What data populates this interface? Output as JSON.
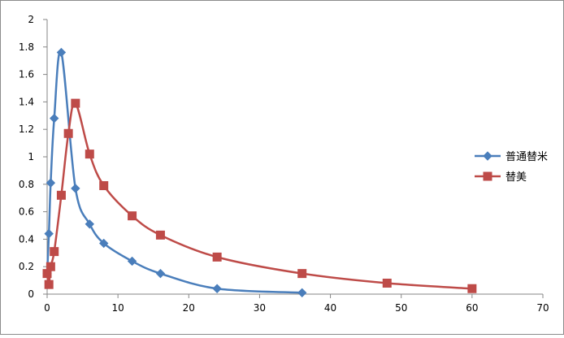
{
  "chart_data": {
    "type": "scatter",
    "title": "",
    "xlabel": "",
    "ylabel": "",
    "xlim": [
      0,
      70
    ],
    "ylim": [
      0,
      2
    ],
    "xticks": [
      0,
      10,
      20,
      30,
      40,
      50,
      60,
      70
    ],
    "yticks": [
      0,
      0.2,
      0.4,
      0.6,
      0.8,
      1,
      1.2,
      1.4,
      1.6,
      1.8,
      2
    ],
    "ytick_labels": [
      "0",
      "0.2",
      "0.4",
      "0.6",
      "0.8",
      "1",
      "1.2",
      "1.4",
      "1.6",
      "1.8",
      "2"
    ],
    "xtick_labels": [
      "0",
      "10",
      "20",
      "30",
      "40",
      "50",
      "60",
      "70"
    ],
    "grid": false,
    "smooth_lines": true,
    "legend_position": "right",
    "series": [
      {
        "name": "普通替米",
        "color": "#4a7ebb",
        "marker": "diamond",
        "points": [
          [
            0,
            0.15
          ],
          [
            0.25,
            0.44
          ],
          [
            0.5,
            0.81
          ],
          [
            1,
            1.28
          ],
          [
            2,
            1.76
          ],
          [
            4,
            0.77
          ],
          [
            6,
            0.51
          ],
          [
            8,
            0.37
          ],
          [
            12,
            0.24
          ],
          [
            16,
            0.15
          ],
          [
            24,
            0.04
          ],
          [
            36,
            0.01
          ]
        ]
      },
      {
        "name": "替美",
        "color": "#be4b48",
        "marker": "square",
        "points": [
          [
            0,
            0.15
          ],
          [
            0.25,
            0.07
          ],
          [
            0.5,
            0.2
          ],
          [
            1,
            0.31
          ],
          [
            2,
            0.72
          ],
          [
            3,
            1.17
          ],
          [
            4,
            1.39
          ],
          [
            6,
            1.02
          ],
          [
            8,
            0.79
          ],
          [
            12,
            0.57
          ],
          [
            16,
            0.43
          ],
          [
            24,
            0.27
          ],
          [
            36,
            0.15
          ],
          [
            48,
            0.08
          ],
          [
            60,
            0.04
          ]
        ]
      }
    ]
  }
}
